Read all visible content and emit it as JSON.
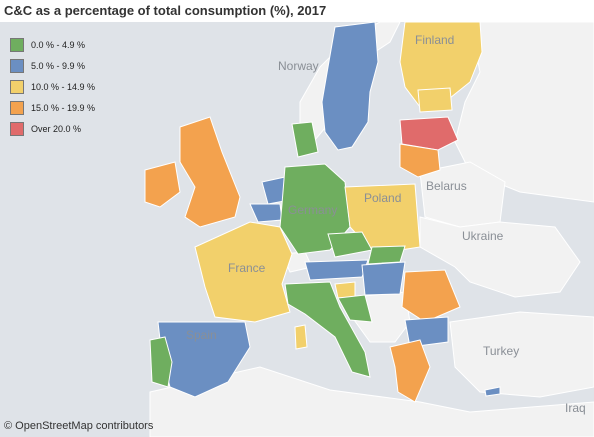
{
  "title": "C&C as a percentage of total consumption (%), 2017",
  "colors": {
    "sea": "#dfe3e8",
    "land_no_data": "#f2f2f2",
    "border": "#ffffff",
    "green": "#6fae5f",
    "blue": "#6b8fc2",
    "yellow": "#f2d06b",
    "orange": "#f3a24e",
    "red": "#e06b6b"
  },
  "legend": [
    {
      "label": "0.0 % - 4.9 %",
      "color": "#6fae5f"
    },
    {
      "label": "5.0 % - 9.9 %",
      "color": "#6b8fc2"
    },
    {
      "label": "10.0 % - 14.9 %",
      "color": "#f2d06b"
    },
    {
      "label": "15.0 % - 19.9 %",
      "color": "#f3a24e"
    },
    {
      "label": "Over 20.0 %",
      "color": "#e06b6b"
    }
  ],
  "map_labels": {
    "norway": "Norway",
    "finland": "Finland",
    "belarus": "Belarus",
    "ukraine": "Ukraine",
    "poland": "Poland",
    "germany": "Germany",
    "france": "France",
    "spain": "Spain",
    "turkey": "Turkey",
    "iraq": "Iraq"
  },
  "attribution": "© OpenStreetMap contributors"
}
